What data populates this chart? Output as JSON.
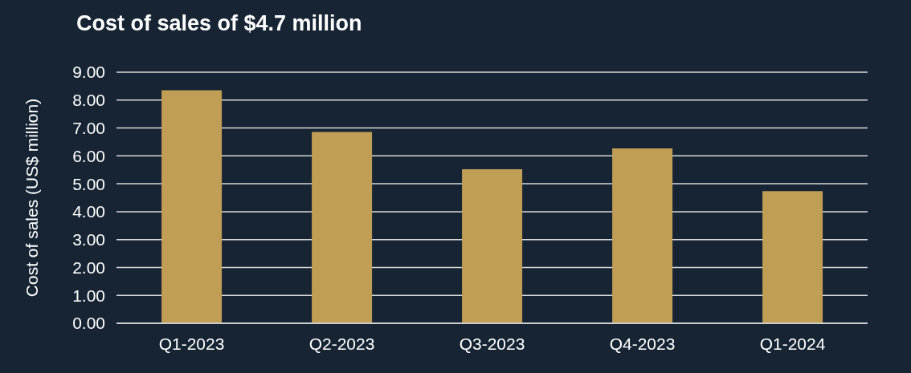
{
  "chart_data": {
    "type": "bar",
    "title": "Cost of sales of $4.7 million",
    "ylabel": "Cost of sales (US$ million)",
    "categories": [
      "Q1-2023",
      "Q2-2023",
      "Q3-2023",
      "Q4-2023",
      "Q1-2024"
    ],
    "values": [
      8.35,
      6.86,
      5.52,
      6.27,
      4.74
    ],
    "color": "#c19e56",
    "ylim": [
      0,
      9
    ],
    "yticks": [
      {
        "value": 0,
        "label": "0.00"
      },
      {
        "value": 1,
        "label": "1.00"
      },
      {
        "value": 2,
        "label": "2.00"
      },
      {
        "value": 3,
        "label": "3.00"
      },
      {
        "value": 4,
        "label": "4.00"
      },
      {
        "value": 5,
        "label": "5.00"
      },
      {
        "value": 6,
        "label": "6.00"
      },
      {
        "value": 7,
        "label": "7.00"
      },
      {
        "value": 8,
        "label": "8.00"
      },
      {
        "value": 9,
        "label": "9.00"
      }
    ],
    "grid": "y"
  }
}
